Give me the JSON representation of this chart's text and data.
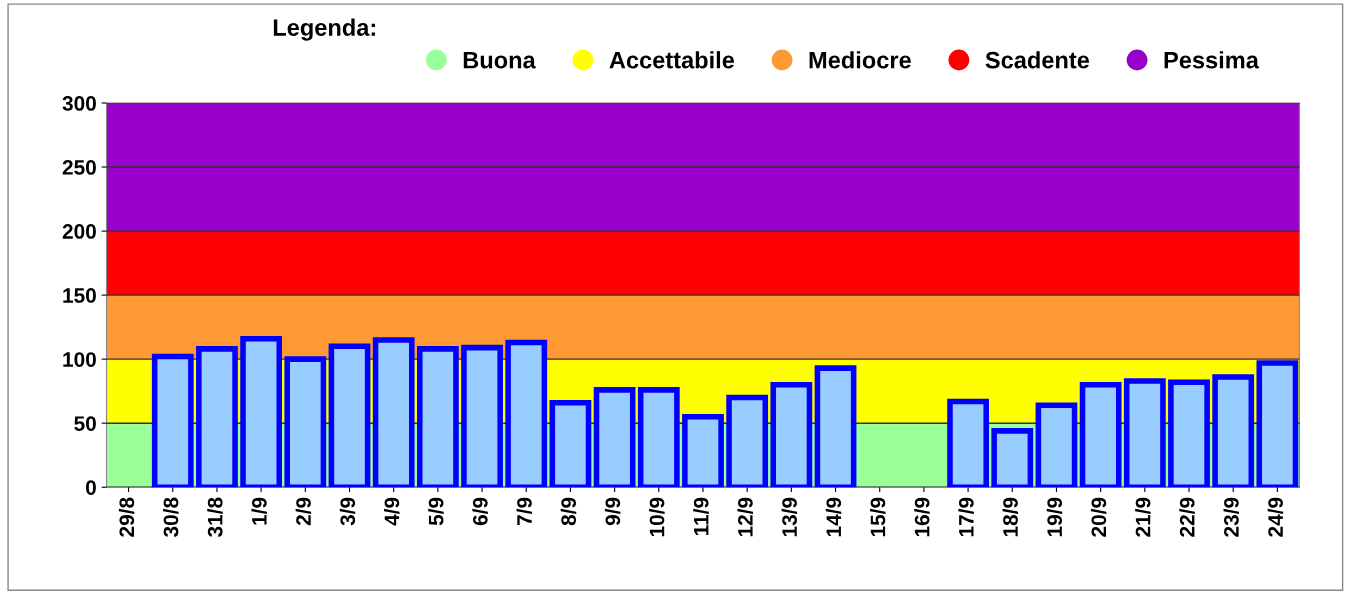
{
  "chart_data": {
    "type": "bar",
    "legend_title": "Legenda:",
    "categories": [
      "29/8",
      "30/8",
      "31/8",
      "1/9",
      "2/9",
      "3/9",
      "4/9",
      "5/9",
      "6/9",
      "7/9",
      "8/9",
      "9/9",
      "10/9",
      "11/9",
      "12/9",
      "13/9",
      "14/9",
      "15/9",
      "16/9",
      "17/9",
      "18/9",
      "19/9",
      "20/9",
      "21/9",
      "22/9",
      "23/9",
      "24/9"
    ],
    "series": [
      {
        "color": "#99ccff",
        "values": [
          null,
          102,
          108,
          116,
          100,
          110,
          115,
          108,
          109,
          113,
          66,
          76,
          76,
          55,
          70,
          80,
          93,
          null,
          null,
          67,
          44,
          64,
          80,
          83,
          82,
          86,
          97
        ]
      }
    ],
    "bands": [
      {
        "axis": "y",
        "from": 0,
        "to": 50,
        "label": "Buona",
        "color": "#99ff99"
      },
      {
        "axis": "y",
        "from": 50,
        "to": 100,
        "label": "Accettabile",
        "color": "#ffff00"
      },
      {
        "axis": "y",
        "from": 100,
        "to": 150,
        "label": "Mediocre",
        "color": "#ff9933"
      },
      {
        "axis": "y",
        "from": 150,
        "to": 200,
        "label": "Scadente",
        "color": "#ff0000"
      },
      {
        "axis": "y",
        "from": 200,
        "to": 300,
        "label": "Pessima",
        "color": "#9900cc"
      }
    ],
    "ylim": [
      0,
      300
    ],
    "yticks": [
      0,
      50,
      100,
      150,
      200,
      250,
      300
    ],
    "grid": "y",
    "legend": "top"
  }
}
